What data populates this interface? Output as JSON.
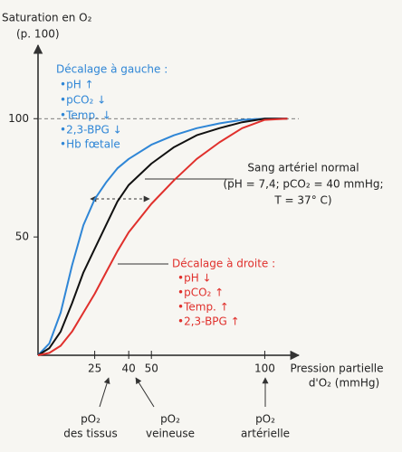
{
  "chart_data": {
    "type": "line",
    "y_label": "Saturation en O₂",
    "y_label_unit": "(p. 100)",
    "x_label": "Pression partielle",
    "x_label_unit": "d'O₂ (mmHg)",
    "x": [
      0,
      5,
      10,
      15,
      20,
      25,
      30,
      35,
      40,
      50,
      60,
      70,
      80,
      90,
      100,
      110
    ],
    "series": [
      {
        "color": "#2f86d6",
        "values": [
          0,
          5,
          18,
          38,
          55,
          66,
          73,
          79,
          83,
          89,
          93,
          96,
          98,
          99.5,
          100,
          100
        ]
      },
      {
        "color": "#111111",
        "values": [
          0,
          3,
          10,
          22,
          35,
          45,
          55,
          65,
          72,
          81,
          88,
          93,
          96,
          98.5,
          100,
          100
        ]
      },
      {
        "color": "#e0302c",
        "values": [
          0,
          1,
          4,
          10,
          18,
          26,
          35,
          44,
          52,
          64,
          74,
          83,
          90,
          96,
          99.5,
          100
        ]
      }
    ],
    "xlim": [
      0,
      115
    ],
    "ylim": [
      0,
      128
    ],
    "xticks": [
      25,
      40,
      50,
      100
    ],
    "yticks": [
      50,
      100
    ],
    "reference_line": 100,
    "annotations": {
      "left_shift": {
        "title": "Décalage à gauche :",
        "items": [
          "•pH ↑",
          "•pCO₂ ↓",
          "•Temp. ↓",
          "•2,3-BPG ↓",
          "•Hb fœtale"
        ]
      },
      "normal": [
        "Sang artériel normal",
        "(pH = 7,4; pCO₂ = 40 mmHg;",
        "T = 37° C)"
      ],
      "right_shift": {
        "title": "Décalage à droite :",
        "items": [
          "•pH ↓",
          "•pCO₂ ↑",
          "•Temp. ↑",
          "•2,3-BPG ↑"
        ]
      },
      "tissues": [
        "pO₂",
        "des tissus"
      ],
      "venous": [
        "pO₂",
        "veineuse"
      ],
      "arterial": [
        "pO₂",
        "artérielle"
      ]
    }
  }
}
